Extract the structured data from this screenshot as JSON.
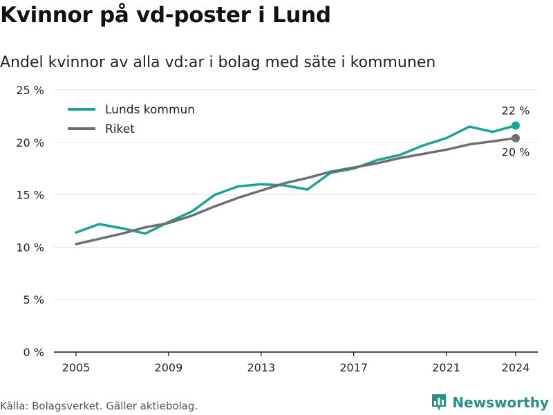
{
  "title": "Kvinnor på vd-poster i Lund",
  "subtitle": "Andel kvinnor av alla vd:ar i bolag med säte i kommunen",
  "source": "Källa: Bolagsverket. Gäller aktiebolag.",
  "brand": {
    "name": "Newsworthy",
    "icon": "bar-chart-logo-icon",
    "color": "#2a8f86"
  },
  "chart_data": {
    "type": "line",
    "x": [
      2005,
      2006,
      2007,
      2008,
      2009,
      2010,
      2011,
      2012,
      2013,
      2014,
      2015,
      2016,
      2017,
      2018,
      2019,
      2020,
      2021,
      2022,
      2023,
      2024
    ],
    "series": [
      {
        "name": "Lunds kommun",
        "color": "#1aa396",
        "values": [
          11.4,
          12.2,
          11.8,
          11.3,
          12.4,
          13.4,
          15.0,
          15.8,
          16.0,
          15.9,
          15.5,
          17.1,
          17.5,
          18.3,
          18.8,
          19.7,
          20.4,
          21.5,
          21.0,
          21.6
        ],
        "end_label": "22 %"
      },
      {
        "name": "Riket",
        "color": "#6e6e73",
        "values": [
          10.3,
          10.8,
          11.3,
          11.9,
          12.3,
          13.0,
          13.9,
          14.7,
          15.4,
          16.1,
          16.6,
          17.2,
          17.6,
          18.0,
          18.5,
          18.9,
          19.3,
          19.8,
          20.1,
          20.4
        ],
        "end_label": "20 %"
      }
    ],
    "x_ticks": [
      2005,
      2009,
      2013,
      2017,
      2021,
      2024
    ],
    "y_ticks": [
      0,
      5,
      10,
      15,
      20,
      25
    ],
    "y_tick_labels": [
      "0 %",
      "5 %",
      "10 %",
      "15 %",
      "20 %",
      "25 %"
    ],
    "ylim": [
      0,
      25
    ],
    "xlabel": "",
    "ylabel": "",
    "grid": true,
    "legend_position": "top-left"
  }
}
